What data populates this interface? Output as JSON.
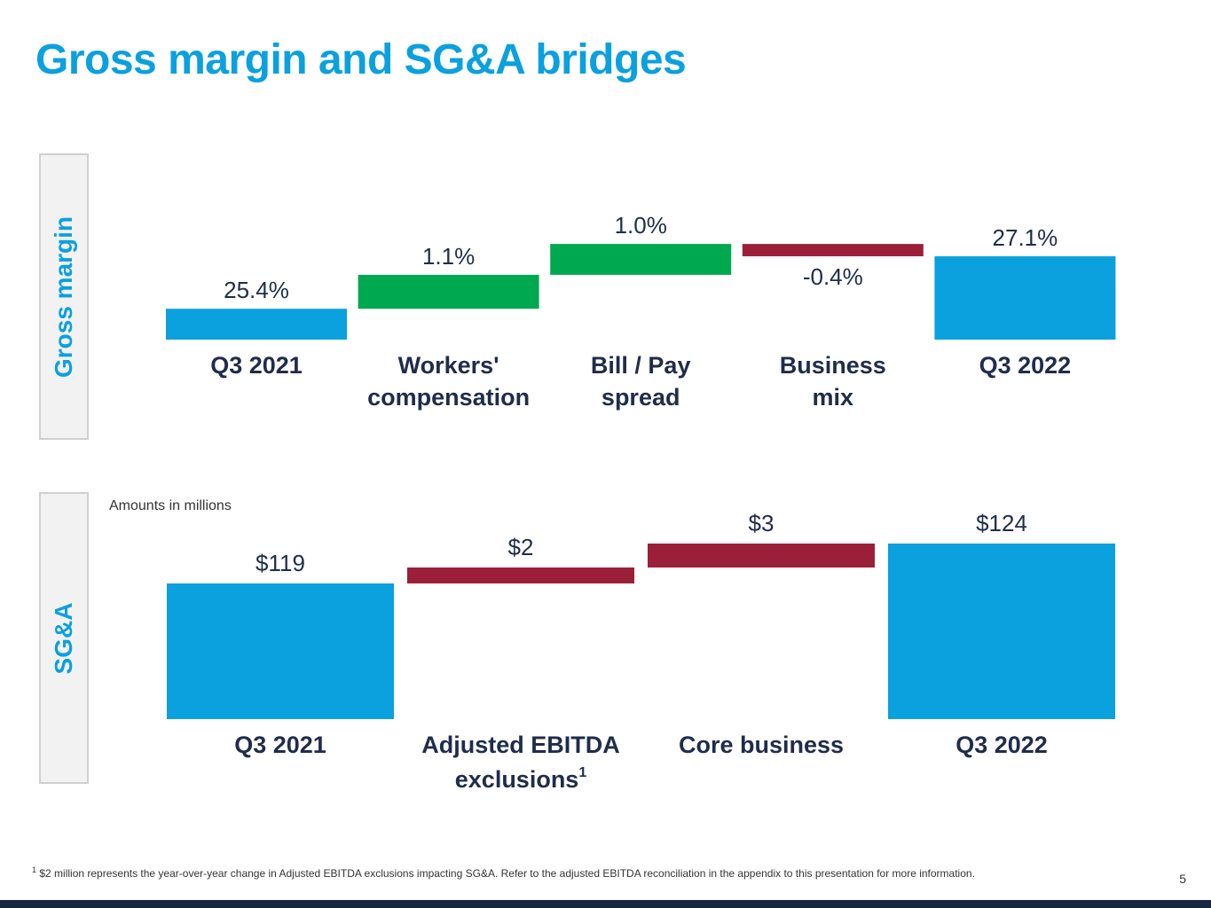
{
  "title": "Gross margin and SG&A bridges",
  "sections": {
    "gross_margin_label": "Gross margin",
    "sga_label": "SG&A",
    "amounts_note": "Amounts in millions"
  },
  "footnote": {
    "marker": "1",
    "text": "$2 million represents the year-over-year change in Adjusted EBITDA exclusions impacting SG&A. Refer to the adjusted EBITDA reconciliation in the appendix to this presentation for more information."
  },
  "page_number": "5",
  "colors": {
    "accent": "#0ba0de",
    "positive": "#00a84f",
    "negative": "#9c1f3a",
    "label": "#1f2d4a",
    "footer": "#152642"
  },
  "chart_data": [
    {
      "type": "bar",
      "subtype": "waterfall",
      "categories": [
        "Q3 2021",
        "Workers' compensation",
        "Bill / Pay spread",
        "Business mix",
        "Q3 2022"
      ],
      "category_lines": [
        [
          "Q3 2021"
        ],
        [
          "Workers'",
          "compensation"
        ],
        [
          "Bill / Pay",
          "spread"
        ],
        [
          "Business",
          "mix"
        ],
        [
          "Q3 2022"
        ]
      ],
      "steps": [
        "total",
        "delta",
        "delta",
        "delta",
        "total"
      ],
      "values": [
        25.4,
        1.1,
        1.0,
        -0.4,
        27.1
      ],
      "labels": [
        "25.4%",
        "1.1%",
        "1.0%",
        "-0.4%",
        "27.1%"
      ],
      "unit": "%"
    },
    {
      "type": "bar",
      "subtype": "waterfall",
      "categories": [
        "Q3 2021",
        "Adjusted EBITDA exclusions",
        "Core business",
        "Q3 2022"
      ],
      "category_lines": [
        [
          "Q3 2021"
        ],
        [
          "Adjusted EBITDA",
          "exclusions"
        ],
        [
          "Core business"
        ],
        [
          "Q3 2022"
        ]
      ],
      "category_superscripts": [
        "",
        "1",
        "",
        ""
      ],
      "steps": [
        "total",
        "delta",
        "delta",
        "total"
      ],
      "values": [
        119,
        2,
        3,
        124
      ],
      "labels": [
        "$119",
        "$2",
        "$3",
        "$124"
      ],
      "unit": "$M"
    }
  ]
}
